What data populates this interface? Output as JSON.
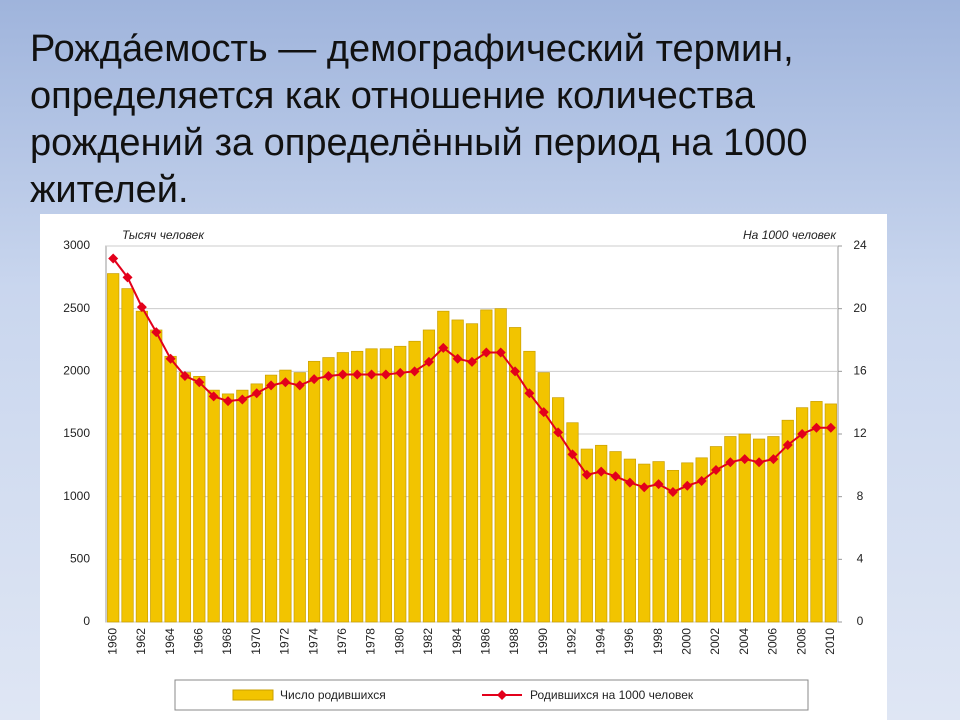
{
  "chart_data": {
    "type": "bar",
    "title": "Рожда́емость — демографический термин, определяется как отношение количества рождений за определённый период на 1000 жителей.",
    "y_label": "Тысяч человек",
    "y2_label": "На 1000 человек",
    "categories": [
      "1960",
      null,
      "1962",
      null,
      "1964",
      null,
      "1966",
      null,
      "1968",
      null,
      "1970",
      null,
      "1972",
      null,
      "1974",
      null,
      "1976",
      null,
      "1978",
      null,
      "1980",
      null,
      "1982",
      null,
      "1984",
      null,
      "1986",
      null,
      "1988",
      null,
      "1990",
      null,
      "1992",
      null,
      "1994",
      null,
      "1996",
      null,
      "1998",
      null,
      "2000",
      null,
      "2002",
      null,
      "2004",
      null,
      "2006",
      null,
      "2008",
      null,
      "2010"
    ],
    "ylim": [
      0,
      3000
    ],
    "yticks": [
      0,
      500,
      1000,
      1500,
      2000,
      2500,
      3000
    ],
    "y2lim": [
      0,
      24
    ],
    "y2ticks": [
      0,
      4,
      8,
      12,
      16,
      20,
      24
    ],
    "grid": true,
    "series": [
      {
        "name": "Число родившихся",
        "type": "bar",
        "color": "#f2c400",
        "values": [
          2780,
          2660,
          2480,
          2330,
          2120,
          1990,
          1960,
          1850,
          1820,
          1850,
          1900,
          1970,
          2010,
          1990,
          2080,
          2110,
          2150,
          2160,
          2180,
          2180,
          2200,
          2240,
          2330,
          2480,
          2410,
          2380,
          2490,
          2500,
          2350,
          2160,
          1990,
          1790,
          1590,
          1380,
          1410,
          1360,
          1300,
          1260,
          1280,
          1210,
          1270,
          1310,
          1400,
          1480,
          1500,
          1460,
          1480,
          1610,
          1710,
          1760,
          1740
        ]
      },
      {
        "name": "Родившихся на 1000 человек",
        "type": "line",
        "axis": "y2",
        "color": "#e3001b",
        "values": [
          23.2,
          22.0,
          20.1,
          18.5,
          16.8,
          15.7,
          15.3,
          14.4,
          14.1,
          14.2,
          14.6,
          15.1,
          15.3,
          15.1,
          15.5,
          15.7,
          15.8,
          15.8,
          15.8,
          15.8,
          15.9,
          16.0,
          16.6,
          17.5,
          16.8,
          16.6,
          17.2,
          17.2,
          16.0,
          14.6,
          13.4,
          12.1,
          10.7,
          9.4,
          9.6,
          9.3,
          8.9,
          8.6,
          8.8,
          8.3,
          8.7,
          9.0,
          9.7,
          10.2,
          10.4,
          10.2,
          10.4,
          11.3,
          12.0,
          12.4,
          12.4
        ]
      }
    ]
  }
}
